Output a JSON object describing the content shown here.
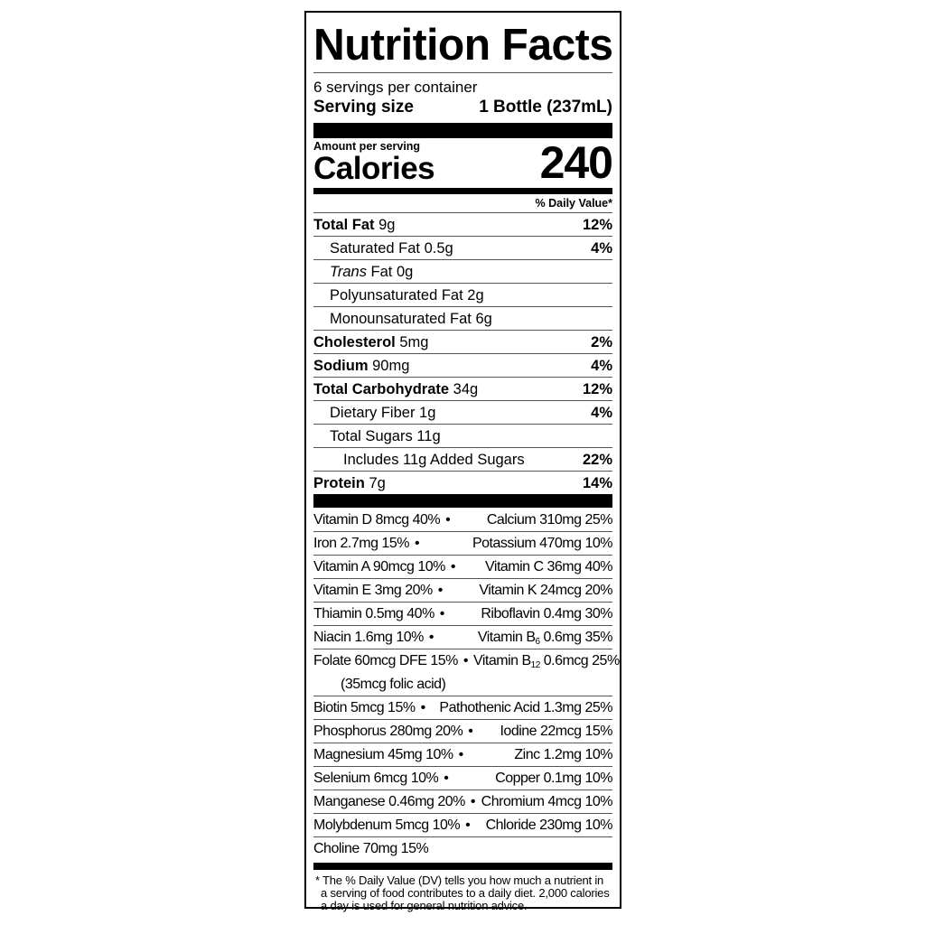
{
  "title": "Nutrition Facts",
  "servings": "6 servings per container",
  "serving_size_label": "Serving size",
  "serving_size_value": "1 Bottle (237mL)",
  "amount_per_serving": "Amount per serving",
  "calories_label": "Calories",
  "calories_value": "240",
  "dv_header": "% Daily Value*",
  "nutrients": [
    {
      "name": "Total Fat",
      "amount": "9g",
      "dv": "12%",
      "bold": true,
      "indent": 0
    },
    {
      "name": "Saturated Fat",
      "amount": "0.5g",
      "dv": "4%",
      "indent": 1
    },
    {
      "name_italic": "Trans",
      "name": "Fat",
      "amount": "0g",
      "dv": "",
      "indent": 1
    },
    {
      "name": "Polyunsaturated Fat",
      "amount": "2g",
      "dv": "",
      "indent": 1
    },
    {
      "name": "Monounsaturated Fat",
      "amount": "6g",
      "dv": "",
      "indent": 1
    },
    {
      "name": "Cholesterol",
      "amount": "5mg",
      "dv": "2%",
      "bold": true,
      "indent": 0
    },
    {
      "name": "Sodium",
      "amount": "90mg",
      "dv": "4%",
      "bold": true,
      "indent": 0
    },
    {
      "name": "Total Carbohydrate",
      "amount": "34g",
      "dv": "12%",
      "bold": true,
      "indent": 0
    },
    {
      "name": "Dietary Fiber",
      "amount": "1g",
      "dv": "4%",
      "indent": 1
    },
    {
      "name": "Total Sugars",
      "amount": "11g",
      "dv": "",
      "indent": 1
    },
    {
      "name": "Includes 11g Added Sugars",
      "amount": "",
      "dv": "22%",
      "indent": 2
    },
    {
      "name": "Protein",
      "amount": "7g",
      "dv": "14%",
      "bold": true,
      "indent": 0
    }
  ],
  "bullet": "•",
  "vitamins": [
    {
      "left": {
        "pre": "Vitamin D 8mcg 40%"
      },
      "right": {
        "pre": "Calcium 310mg 25%"
      }
    },
    {
      "left": {
        "pre": "Iron 2.7mg 15%"
      },
      "right": {
        "pre": "Potassium 470mg 10%"
      }
    },
    {
      "left": {
        "pre": "Vitamin A 90mcg 10%"
      },
      "right": {
        "pre": "Vitamin C 36mg 40%"
      }
    },
    {
      "left": {
        "pre": "Vitamin E 3mg 20%"
      },
      "right": {
        "pre": "Vitamin K 24mcg 20%"
      }
    },
    {
      "left": {
        "pre": "Thiamin 0.5mg 40%"
      },
      "right": {
        "pre": "Riboflavin 0.4mg 30%"
      }
    },
    {
      "left": {
        "pre": "Niacin 1.6mg 10%"
      },
      "right": {
        "pre": "Vitamin B",
        "sub": "6",
        "post": " 0.6mg 35%"
      }
    },
    {
      "left": {
        "pre": "Folate 60mcg DFE 15%"
      },
      "right": {
        "pre": "Vitamin B",
        "sub": "12",
        "post": " 0.6mcg 25%"
      },
      "note": "(35mcg folic acid)"
    },
    {
      "left": {
        "pre": "Biotin 5mcg 15%"
      },
      "right": {
        "pre": "Pathothenic Acid 1.3mg 25%"
      }
    },
    {
      "left": {
        "pre": "Phosphorus 280mg 20%"
      },
      "right": {
        "pre": "Iodine 22mcg 15%"
      }
    },
    {
      "left": {
        "pre": "Magnesium 45mg 10%"
      },
      "right": {
        "pre": "Zinc 1.2mg 10%"
      }
    },
    {
      "left": {
        "pre": "Selenium 6mcg 10%"
      },
      "right": {
        "pre": "Copper 0.1mg 10%"
      }
    },
    {
      "left": {
        "pre": "Manganese 0.46mg 20%"
      },
      "right": {
        "pre": "Chromium 4mcg 10%"
      }
    },
    {
      "left": {
        "pre": "Molybdenum 5mcg 10%"
      },
      "right": {
        "pre": "Chloride 230mg 10%"
      }
    },
    {
      "left": {
        "pre": "Choline 70mg 15%"
      }
    }
  ],
  "footnote": "* The % Daily Value (DV) tells you how much a nutrient in a serving of food contributes to a daily diet. 2,000 calories a day is used for general nutrition advice."
}
